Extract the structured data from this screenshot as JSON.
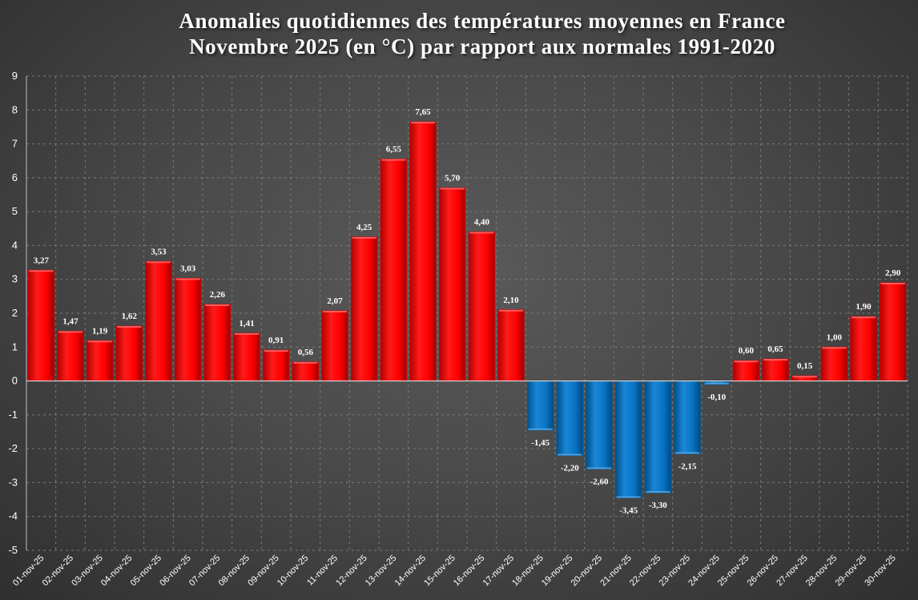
{
  "chart_data": {
    "type": "bar",
    "title_lines": [
      "Anomalies quotidiennes des températures moyennes en France",
      "Novembre 2025 (en °C) par rapport aux normales 1991-2020"
    ],
    "xlabel": "",
    "ylabel": "",
    "ylim": [
      -5,
      9
    ],
    "yticks": [
      "9",
      "8",
      "7",
      "6",
      "5",
      "4",
      "3",
      "2",
      "1",
      "0",
      "-1",
      "-2",
      "-3",
      "-4",
      "-5"
    ],
    "grid": true,
    "legend": "none",
    "colors": {
      "positive": "#ff0000",
      "negative": "#0070c0"
    },
    "categories": [
      "01-nov-25",
      "02-nov-25",
      "03-nov-25",
      "04-nov-25",
      "05-nov-25",
      "06-nov-25",
      "07-nov-25",
      "08-nov-25",
      "09-nov-25",
      "10-nov-25",
      "11-nov-25",
      "12-nov-25",
      "13-nov-25",
      "14-nov-25",
      "15-nov-25",
      "16-nov-25",
      "17-nov-25",
      "18-nov-25",
      "19-nov-25",
      "20-nov-25",
      "21-nov-25",
      "22-nov-25",
      "23-nov-25",
      "24-nov-25",
      "25-nov-25",
      "26-nov-25",
      "27-nov-25",
      "28-nov-25",
      "29-nov-25",
      "30-nov-25"
    ],
    "values": [
      3.27,
      1.47,
      1.19,
      1.62,
      3.53,
      3.03,
      2.26,
      1.41,
      0.91,
      0.56,
      2.07,
      4.25,
      6.55,
      7.65,
      5.7,
      4.4,
      2.1,
      -1.45,
      -2.2,
      -2.6,
      -3.45,
      -3.3,
      -2.15,
      -0.1,
      0.6,
      0.65,
      0.15,
      1.0,
      1.9,
      2.9
    ],
    "data_labels": [
      "3,27",
      "1,47",
      "1,19",
      "1,62",
      "3,53",
      "3,03",
      "2,26",
      "1,41",
      "0,91",
      "0,56",
      "2,07",
      "4,25",
      "6,55",
      "7,65",
      "5,70",
      "4,40",
      "2,10",
      "-1,45",
      "-2,20",
      "-2,60",
      "-3,45",
      "-3,30",
      "-2,15",
      "-0,10",
      "0,60",
      "0,65",
      "0,15",
      "1,00",
      "1,90",
      "2,90"
    ]
  }
}
